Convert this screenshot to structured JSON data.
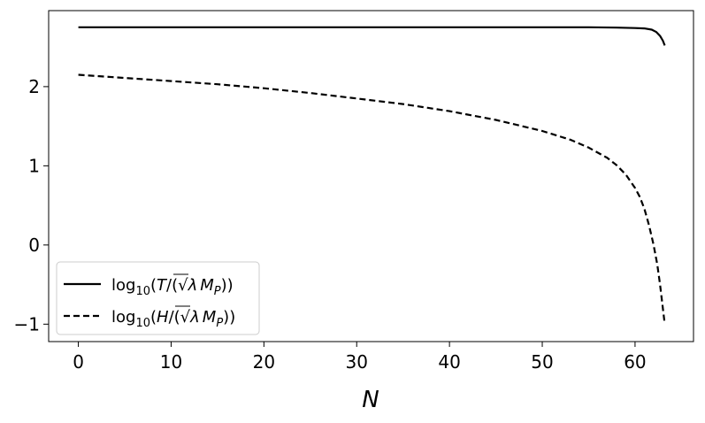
{
  "chart_data": {
    "type": "line",
    "xlabel": "N",
    "ylabel": "",
    "xlim": [
      -3.2,
      66.3
    ],
    "ylim": [
      -1.22,
      2.96
    ],
    "x_ticks": [
      0,
      10,
      20,
      30,
      40,
      50,
      60
    ],
    "x_tick_labels": [
      "0",
      "10",
      "20",
      "30",
      "40",
      "50",
      "60"
    ],
    "y_ticks": [
      -1,
      0,
      1,
      2
    ],
    "y_tick_labels": [
      "−1",
      "0",
      "1",
      "2"
    ],
    "grid": false,
    "legend_position": "lower-left",
    "series": [
      {
        "name": "log10(T/(√λ M_P))",
        "style": "solid",
        "color": "#000000",
        "x": [
          0,
          5,
          10,
          15,
          20,
          25,
          30,
          35,
          40,
          45,
          50,
          55,
          58,
          60,
          61,
          61.8,
          62.3,
          62.7,
          63.0,
          63.2
        ],
        "y": [
          2.75,
          2.75,
          2.75,
          2.75,
          2.75,
          2.75,
          2.75,
          2.75,
          2.75,
          2.75,
          2.75,
          2.75,
          2.745,
          2.74,
          2.735,
          2.72,
          2.69,
          2.64,
          2.58,
          2.52
        ]
      },
      {
        "name": "log10(H/(√λ M_P))",
        "style": "dashed",
        "color": "#000000",
        "x": [
          0,
          5,
          10,
          15,
          20,
          25,
          30,
          35,
          40,
          45,
          50,
          53,
          55,
          57,
          58,
          59,
          60,
          60.5,
          61,
          61.5,
          62,
          62.4,
          62.7,
          62.9,
          63.05,
          63.2
        ],
        "y": [
          2.15,
          2.11,
          2.07,
          2.03,
          1.98,
          1.92,
          1.85,
          1.78,
          1.69,
          1.58,
          1.44,
          1.33,
          1.23,
          1.1,
          1.01,
          0.89,
          0.72,
          0.61,
          0.46,
          0.25,
          0.0,
          -0.25,
          -0.5,
          -0.7,
          -0.85,
          -1.0
        ]
      }
    ],
    "legend": {
      "entries": [
        {
          "func": "log",
          "sub": "10",
          "num": "T",
          "rad": "λ",
          "mass": "M",
          "mass_sub": "P"
        },
        {
          "func": "log",
          "sub": "10",
          "num": "H",
          "rad": "λ",
          "mass": "M",
          "mass_sub": "P"
        }
      ]
    }
  }
}
